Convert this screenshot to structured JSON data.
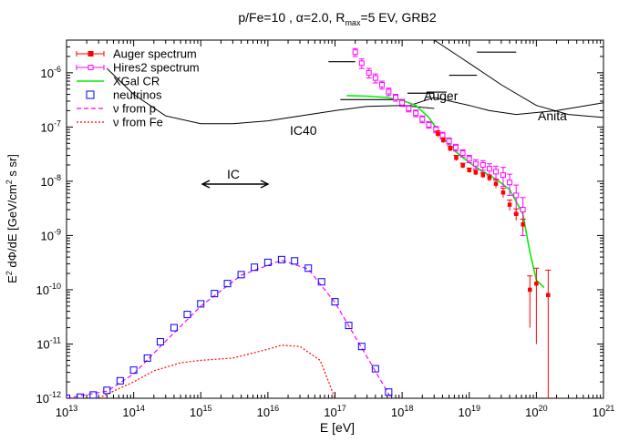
{
  "chart_data": {
    "type": "scatter",
    "title": "p/Fe=10 , α=2.0, R",
    "title_sub": "max",
    "title_tail": "=5 EV, GRB2",
    "xlabel": "E [eV]",
    "ylabel": {
      "a": "E",
      "a_sup": "2",
      "b": " dΦ/dE [GeV/cm",
      "b_sup": "2",
      "c": " s sr]"
    },
    "x_scale": "log",
    "y_scale": "log",
    "xlim": [
      10000000000000.0,
      1e+21
    ],
    "ylim": [
      1e-12,
      4e-06
    ],
    "x_ticks": [
      {
        "v": 10000000000000.0,
        "base": "10",
        "exp": "13"
      },
      {
        "v": 100000000000000.0,
        "base": "10",
        "exp": "14"
      },
      {
        "v": 1000000000000000.0,
        "base": "10",
        "exp": "15"
      },
      {
        "v": 1e+16,
        "base": "10",
        "exp": "16"
      },
      {
        "v": 1e+17,
        "base": "10",
        "exp": "17"
      },
      {
        "v": 1e+18,
        "base": "10",
        "exp": "18"
      },
      {
        "v": 1e+19,
        "base": "10",
        "exp": "19"
      },
      {
        "v": 1e+20,
        "base": "10",
        "exp": "20"
      },
      {
        "v": 1e+21,
        "base": "10",
        "exp": "21"
      }
    ],
    "y_ticks": [
      {
        "v": 1e-12,
        "base": "10",
        "exp": "-12"
      },
      {
        "v": 1e-11,
        "base": "10",
        "exp": "-11"
      },
      {
        "v": 1e-10,
        "base": "10",
        "exp": "-10"
      },
      {
        "v": 1e-09,
        "base": "10",
        "exp": "-9"
      },
      {
        "v": 1e-08,
        "base": "10",
        "exp": "-8"
      },
      {
        "v": 1e-07,
        "base": "10",
        "exp": "-7"
      },
      {
        "v": 1e-06,
        "base": "10",
        "exp": "-6"
      }
    ],
    "legend_position": "top-left",
    "legend": [
      {
        "label": "Auger spectrum",
        "color": "#ff0000",
        "style": "errbar"
      },
      {
        "label": "Hires2 spectrum",
        "color": "#ff00ff",
        "style": "errbar-open"
      },
      {
        "label": "XGal CR",
        "color": "#00ee00",
        "style": "line"
      },
      {
        "label": "neutrinos",
        "color": "#0000ff",
        "style": "square"
      },
      {
        "label": "ν from p",
        "color": "#ff00ff",
        "style": "dash"
      },
      {
        "label": "ν from Fe",
        "color": "#ff0000",
        "style": "dot"
      }
    ],
    "series": {
      "auger": [
        [
          3.4e+18,
          7.5e-08,
          1e-08
        ],
        [
          4.1e+18,
          5.7e-08,
          6e-09
        ],
        [
          5.2e+18,
          4e-08,
          4e-09
        ],
        [
          6.4e+18,
          2.7e-08,
          3e-09
        ],
        [
          8e+18,
          1.95e-08,
          2e-09
        ],
        [
          1e+19,
          1.6e-08,
          1.5e-09
        ],
        [
          1.25e+19,
          1.45e-08,
          1.5e-09
        ],
        [
          1.6e+19,
          1.3e-08,
          1.5e-09
        ],
        [
          2e+19,
          1.15e-08,
          1.5e-09
        ],
        [
          2.5e+19,
          9e-09,
          1.5e-09
        ],
        [
          3.2e+19,
          6.2e-09,
          1.2e-09
        ],
        [
          4e+19,
          3.7e-09,
          8e-10
        ],
        [
          5e+19,
          2.5e-09,
          6e-10
        ],
        [
          6.3e+19,
          1.6e-09,
          4e-10
        ],
        [
          8e+19,
          1e-10,
          8e-11
        ],
        [
          1e+20,
          1.3e-10,
          1.2e-10
        ],
        [
          1.5e+20,
          8e-11,
          1.5e-10
        ]
      ],
      "hires": [
        [
          2e+17,
          2.4e-06,
          4e-07
        ],
        [
          2.5e+17,
          1.5e-06,
          3e-07
        ],
        [
          3.2e+17,
          1e-06,
          2e-07
        ],
        [
          4e+17,
          8e-07,
          1.5e-07
        ],
        [
          5e+17,
          6e-07,
          1e-07
        ],
        [
          6.3e+17,
          4.5e-07,
          7e-08
        ],
        [
          8e+17,
          3.5e-07,
          5e-08
        ],
        [
          1e+18,
          2.8e-07,
          4e-08
        ],
        [
          1.25e+18,
          2.2e-07,
          3e-08
        ],
        [
          1.6e+18,
          1.8e-07,
          2.5e-08
        ],
        [
          2e+18,
          1.4e-07,
          2e-08
        ],
        [
          2.5e+18,
          1.1e-07,
          1.5e-08
        ],
        [
          3.2e+18,
          9e-08,
          1.2e-08
        ],
        [
          4e+18,
          7e-08,
          1e-08
        ],
        [
          5e+18,
          5.5e-08,
          8e-09
        ],
        [
          6.3e+18,
          4.2e-08,
          6e-09
        ],
        [
          8e+18,
          3.3e-08,
          5e-09
        ],
        [
          1e+19,
          2.6e-08,
          4e-09
        ],
        [
          1.25e+19,
          2.1e-08,
          4e-09
        ],
        [
          1.6e+19,
          2e-08,
          4e-09
        ],
        [
          2e+19,
          1.7e-08,
          4e-09
        ],
        [
          2.5e+19,
          1.5e-08,
          4e-09
        ],
        [
          3.2e+19,
          1.3e-08,
          5e-09
        ],
        [
          4e+19,
          9.5e-09,
          4e-09
        ],
        [
          5e+19,
          5.5e-09,
          3e-09
        ],
        [
          6.3e+19,
          3e-09,
          2e-09
        ]
      ],
      "xgal_cr": [
        [
          1.5e+17,
          3.8e-07
        ],
        [
          3e+17,
          3.7e-07
        ],
        [
          6e+17,
          3.5e-07
        ],
        [
          1e+18,
          3.1e-07
        ],
        [
          1.6e+18,
          2.5e-07
        ],
        [
          2.5e+18,
          1.5e-07
        ],
        [
          4e+18,
          6.5e-08
        ],
        [
          6.3e+18,
          3.5e-08
        ],
        [
          1e+19,
          2.2e-08
        ],
        [
          1.6e+19,
          1.5e-08
        ],
        [
          2.5e+19,
          1.1e-08
        ],
        [
          4e+19,
          7e-09
        ],
        [
          6.3e+19,
          2.5e-09
        ],
        [
          8e+19,
          5e-10
        ],
        [
          1e+20,
          1.5e-10
        ],
        [
          1.3e+20,
          1.1e-10
        ]
      ],
      "neutrinos": [
        [
          10000000000000.0,
          1e-12
        ],
        [
          16000000000000.0,
          1.05e-12
        ],
        [
          25000000000000.0,
          1.15e-12
        ],
        [
          40000000000000.0,
          1.4e-12
        ],
        [
          63000000000000.0,
          2.1e-12
        ],
        [
          100000000000000.0,
          3.3e-12
        ],
        [
          160000000000000.0,
          5.5e-12
        ],
        [
          250000000000000.0,
          1.1e-11
        ],
        [
          400000000000000.0,
          2e-11
        ],
        [
          630000000000000.0,
          3.5e-11
        ],
        [
          1000000000000000.0,
          5.5e-11
        ],
        [
          1600000000000000.0,
          8.5e-11
        ],
        [
          2500000000000000.0,
          1.3e-10
        ],
        [
          4000000000000000.0,
          1.9e-10
        ],
        [
          6300000000000000.0,
          2.6e-10
        ],
        [
          1e+16,
          3.2e-10
        ],
        [
          1.6e+16,
          3.6e-10
        ],
        [
          2.5e+16,
          3.4e-10
        ],
        [
          4e+16,
          2.5e-10
        ],
        [
          6.3e+16,
          1.4e-10
        ],
        [
          1e+17,
          6e-11
        ],
        [
          1.6e+17,
          2.2e-11
        ],
        [
          2.5e+17,
          9e-12
        ],
        [
          4e+17,
          3.5e-12
        ],
        [
          6.3e+17,
          1.3e-12
        ]
      ],
      "nu_from_p": [
        [
          10000000000000.0,
          1e-12
        ],
        [
          40000000000000.0,
          1.35e-12
        ],
        [
          100000000000000.0,
          2.8e-12
        ],
        [
          250000000000000.0,
          9e-12
        ],
        [
          1000000000000000.0,
          5e-11
        ],
        [
          4000000000000000.0,
          1.85e-10
        ],
        [
          1.6e+16,
          3.5e-10
        ],
        [
          4e+16,
          2.4e-10
        ],
        [
          1e+17,
          5.8e-11
        ],
        [
          2.5e+17,
          8.5e-12
        ],
        [
          6.3e+17,
          1.2e-12
        ],
        [
          7e+17,
          1e-12
        ]
      ],
      "nu_from_fe": [
        [
          30000000000000.0,
          1e-12
        ],
        [
          60000000000000.0,
          1.5e-12
        ],
        [
          100000000000000.0,
          2e-12
        ],
        [
          200000000000000.0,
          3.2e-12
        ],
        [
          500000000000000.0,
          4.5e-12
        ],
        [
          1000000000000000.0,
          5e-12
        ],
        [
          3000000000000000.0,
          5.5e-12
        ],
        [
          1e+16,
          8e-12
        ],
        [
          1.6e+16,
          9.5e-12
        ],
        [
          3e+16,
          9e-12
        ],
        [
          6e+16,
          5e-12
        ],
        [
          1e+17,
          1e-12
        ]
      ],
      "ic40": [
        [
          40000000000000.0,
          1.2e-06
        ],
        [
          100000000000000.0,
          4e-07
        ],
        [
          300000000000000.0,
          1.6e-07
        ],
        [
          1000000000000000.0,
          1.15e-07
        ],
        [
          3000000000000000.0,
          1.15e-07
        ],
        [
          1e+16,
          1.3e-07
        ],
        [
          3e+16,
          1.6e-07
        ],
        [
          1e+17,
          2e-07
        ],
        [
          3e+17,
          2.4e-07
        ],
        [
          1e+18,
          2.5e-07
        ],
        [
          3e+18,
          2.2e-07
        ]
      ],
      "auger_nu": [
        [
          1.3e+18,
          2.5e-07
        ],
        [
          3e+18,
          3.5e-07
        ],
        [
          1e+19,
          2.5e-07
        ],
        [
          2e+19,
          2e-07
        ],
        [
          5e+19,
          1.7e-07
        ],
        [
          2e+20,
          2e-07
        ],
        [
          1e+21,
          2.8e-07
        ]
      ],
      "anita": [
        [
          3e+18,
          4e-06
        ],
        [
          1e+19,
          1.5e-06
        ],
        [
          3e+19,
          6e-07
        ],
        [
          1e+20,
          2.5e-07
        ],
        [
          3e+20,
          1.7e-07
        ],
        [
          1e+21,
          1.5e-07
        ]
      ],
      "limits": [
        [
          8e+16,
          2e+17,
          1.6e-06
        ],
        [
          1.2e+17,
          1.1e+18,
          3.2e-07
        ],
        [
          1.2e+18,
          3e+18,
          4.2e-07
        ],
        [
          2.3e+18,
          4.6e+18,
          4.4e-07
        ],
        [
          5e+18,
          1.3e+19,
          9e-07
        ],
        [
          1.3e+19,
          5e+19,
          2.4e-06
        ]
      ]
    },
    "annotations": {
      "ic40": "IC40",
      "auger": "Auger",
      "anita": "Anita",
      "ic": "IC"
    }
  }
}
